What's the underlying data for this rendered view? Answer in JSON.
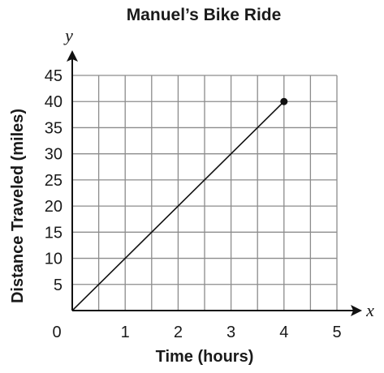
{
  "chart_data": {
    "type": "line",
    "title": "Manuel’s Bike Ride",
    "xlabel": "Time (hours)",
    "ylabel": "Distance Traveled (miles)",
    "x_var": "x",
    "y_var": "y",
    "xlim": [
      0,
      5
    ],
    "ylim": [
      0,
      45
    ],
    "x_ticks": [
      "1",
      "2",
      "3",
      "4",
      "5"
    ],
    "y_ticks": [
      "5",
      "10",
      "15",
      "20",
      "25",
      "30",
      "35",
      "40",
      "45"
    ],
    "origin_label": "0",
    "grid": true,
    "series": [
      {
        "x": [
          0,
          4
        ],
        "y": [
          0,
          40
        ],
        "endpoint_marker": "filled-circle",
        "color": "#111111"
      }
    ]
  }
}
